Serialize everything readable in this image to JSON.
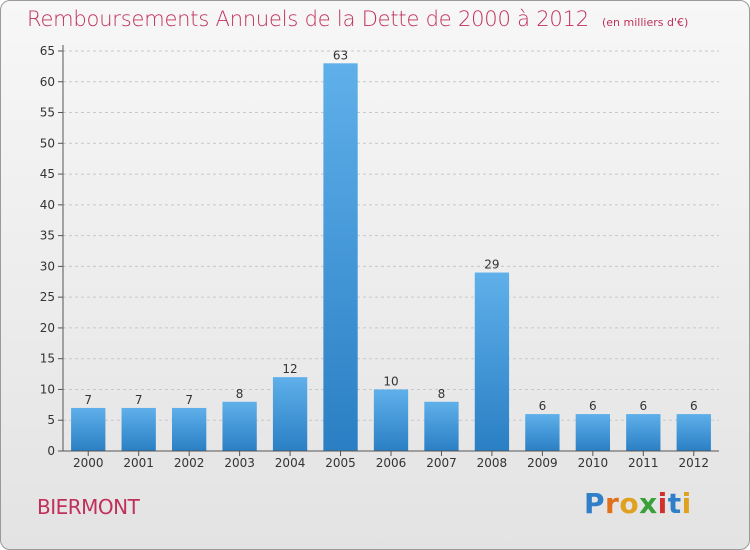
{
  "title": "Remboursements Annuels de la Dette de 2000 à 2012",
  "unit": "(en milliers d'€)",
  "commune": "BIERMONT",
  "logo": {
    "letters": [
      "P",
      "r",
      "o",
      "x",
      "i",
      "t",
      "i"
    ],
    "colors": [
      "#2f80c8",
      "#e0701a",
      "#e0a020",
      "#3aa03a",
      "#d03030",
      "#2f80c8",
      "#e0a020"
    ]
  },
  "chart_data": {
    "type": "bar",
    "title": "Remboursements Annuels de la Dette de 2000 à 2012",
    "subtitle": "(en milliers d'€)",
    "categories": [
      "2000",
      "2001",
      "2002",
      "2003",
      "2004",
      "2005",
      "2006",
      "2007",
      "2008",
      "2009",
      "2010",
      "2011",
      "2012"
    ],
    "values": [
      7,
      7,
      7,
      8,
      12,
      63,
      10,
      8,
      29,
      6,
      6,
      6,
      6
    ],
    "ylim": [
      0,
      65
    ],
    "yticks": [
      0,
      5,
      10,
      15,
      20,
      25,
      30,
      35,
      40,
      45,
      50,
      55,
      60,
      65
    ],
    "grid": "horizontal dashed",
    "bar_color": "#3a93d6"
  }
}
